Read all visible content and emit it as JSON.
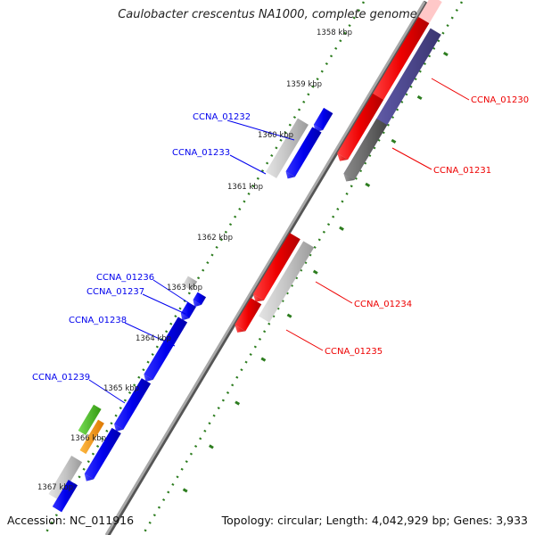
{
  "title": "Caulobacter crescentus NA1000, complete genome",
  "footer": {
    "accession": "Accession: NC_011916",
    "topology": "Topology: circular; Length: 4,042,929 bp; Genes: 3,933"
  },
  "colors": {
    "forward_cds": "#0000ee",
    "reverse_cds": "#ee0000",
    "pseudo_gray": "#c0c0c0",
    "highlight_purple": "#55509a",
    "highlight_darkgray": "#6a6a6a",
    "green_feature": "#44bb22",
    "orange_feature": "#ff9900",
    "backbone": "#888888",
    "tick_green": "#2d7d1f"
  },
  "kbp_labels": [
    "1358 kbp",
    "1359 kbp",
    "1360 kbp",
    "1361 kbp",
    "1362 kbp",
    "1363 kbp",
    "1364 kbp",
    "1365 kbp",
    "1366 kbp",
    "1367 kbp"
  ],
  "gene_labels": {
    "forward": [
      "CCNA_01232",
      "CCNA_01233",
      "CCNA_01236",
      "CCNA_01237",
      "CCNA_01238",
      "CCNA_01239"
    ],
    "reverse": [
      "CCNA_01230",
      "CCNA_01231",
      "CCNA_01234",
      "CCNA_01235"
    ]
  }
}
